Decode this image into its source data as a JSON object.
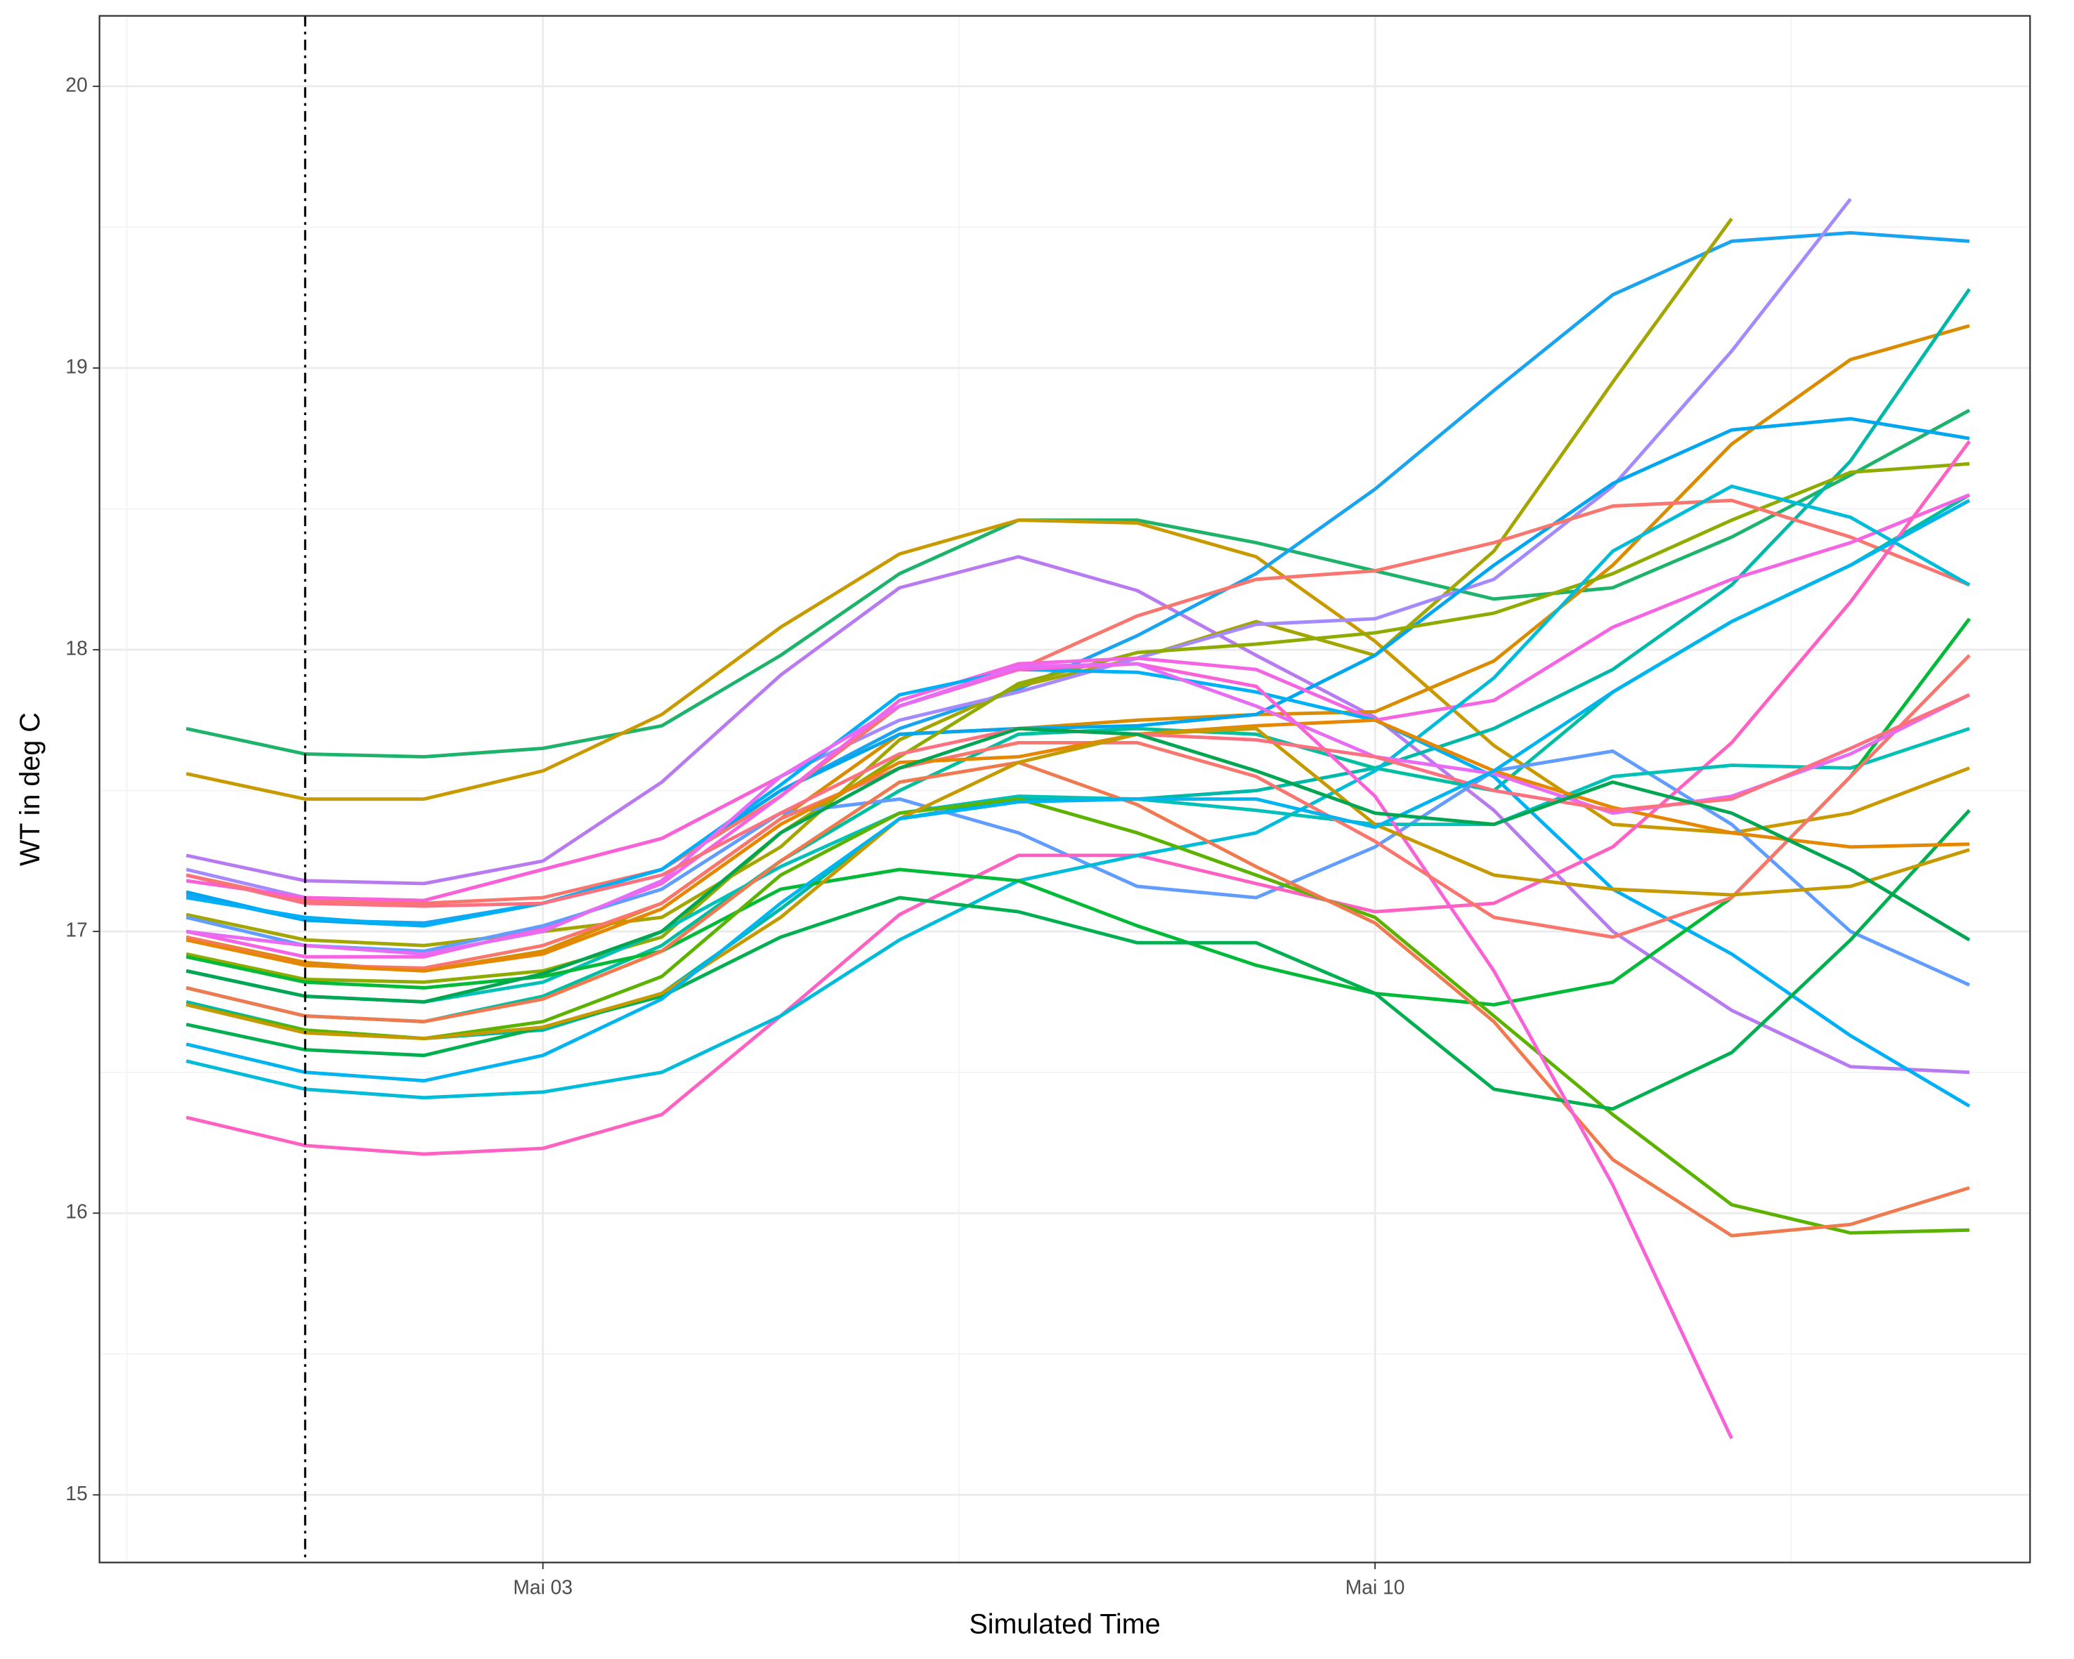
{
  "chart_data": {
    "type": "line",
    "x_label": "Simulated Time",
    "y_label": "WT in deg C",
    "x": [
      0,
      1,
      2,
      3,
      4,
      5,
      6,
      7,
      8,
      9,
      10,
      11,
      12,
      13,
      14,
      15
    ],
    "xlim": [
      -0.73,
      15.51
    ],
    "xticks": [
      {
        "value": 3,
        "label": "Mai 03"
      },
      {
        "value": 10,
        "label": "Mai 10"
      }
    ],
    "xminor": [
      -0.5,
      6.5,
      13.5
    ],
    "ylim": [
      14.76,
      20.25
    ],
    "yticks": [
      15,
      16,
      17,
      18,
      19,
      20
    ],
    "yminor": [
      15.5,
      16.5,
      17.5,
      18.5,
      19.5
    ],
    "vline": 1,
    "grid": true,
    "series": [
      {
        "color": "#1db36b",
        "values": [
          17.72,
          17.63,
          17.62,
          17.65,
          17.73,
          17.98,
          18.27,
          18.46,
          18.46,
          18.38,
          18.28,
          18.18,
          18.22,
          18.4,
          18.62,
          18.85
        ]
      },
      {
        "color": "#c99a00",
        "values": [
          17.56,
          17.47,
          17.47,
          17.57,
          17.77,
          18.08,
          18.34,
          18.46,
          18.45,
          18.33,
          18.03,
          17.66,
          17.38,
          17.35,
          17.42,
          17.58
        ]
      },
      {
        "color": "#b87af0",
        "values": [
          17.27,
          17.18,
          17.17,
          17.25,
          17.53,
          17.91,
          18.22,
          18.33,
          18.21,
          17.98,
          17.76,
          17.43,
          17.0,
          16.72,
          16.52,
          16.5
        ]
      },
      {
        "color": "#1aa4f0",
        "values": [
          17.13,
          17.04,
          17.03,
          17.1,
          17.22,
          17.5,
          17.72,
          17.86,
          18.05,
          18.27,
          18.57,
          18.92,
          19.26,
          19.45,
          19.48,
          19.45
        ]
      },
      {
        "color": "#a3a500",
        "values": [
          17.06,
          16.97,
          16.95,
          17.0,
          17.05,
          17.3,
          17.68,
          17.87,
          17.97,
          18.1,
          17.98,
          18.35,
          18.95,
          19.53,
          null,
          null
        ]
      },
      {
        "color": "#a48afc",
        "values": [
          17.22,
          17.12,
          17.11,
          17.22,
          17.33,
          17.55,
          17.75,
          17.85,
          17.97,
          18.09,
          18.11,
          18.25,
          18.58,
          19.06,
          19.6,
          null
        ]
      },
      {
        "color": "#d98c00",
        "values": [
          16.98,
          16.89,
          16.86,
          16.93,
          17.1,
          17.4,
          17.7,
          17.72,
          17.75,
          17.77,
          17.78,
          17.96,
          18.3,
          18.73,
          19.03,
          19.15
        ]
      },
      {
        "color": "#00b8a8",
        "values": [
          16.75,
          16.65,
          16.62,
          16.65,
          16.78,
          17.08,
          17.4,
          17.47,
          17.47,
          17.5,
          17.58,
          17.72,
          17.93,
          18.23,
          18.67,
          19.28
        ]
      },
      {
        "color": "#00a6ee",
        "values": [
          17.14,
          17.04,
          17.02,
          17.1,
          17.22,
          17.5,
          17.7,
          17.72,
          17.73,
          17.77,
          17.98,
          18.3,
          18.59,
          18.78,
          18.82,
          18.75
        ]
      },
      {
        "color": "#8fab00",
        "values": [
          16.92,
          16.83,
          16.82,
          16.86,
          16.98,
          17.35,
          17.62,
          17.88,
          17.99,
          18.02,
          18.06,
          18.13,
          18.27,
          18.46,
          18.63,
          18.66
        ]
      },
      {
        "color": "#f8766d",
        "values": [
          17.2,
          17.11,
          17.1,
          17.12,
          17.22,
          17.48,
          17.8,
          17.93,
          18.12,
          18.25,
          18.28,
          18.38,
          18.51,
          18.53,
          18.4,
          18.23
        ]
      },
      {
        "color": "#00bfa0",
        "values": [
          16.8,
          16.7,
          16.68,
          16.77,
          16.95,
          17.25,
          17.5,
          17.7,
          17.72,
          17.7,
          17.58,
          17.5,
          17.85,
          18.1,
          18.3,
          18.55
        ]
      },
      {
        "color": "#f564e3",
        "values": [
          17.0,
          16.91,
          16.91,
          17.01,
          17.17,
          17.48,
          17.82,
          17.95,
          17.97,
          17.93,
          17.75,
          17.82,
          18.08,
          18.25,
          18.38,
          18.55
        ]
      },
      {
        "color": "#00b0f6",
        "values": [
          17.12,
          17.05,
          17.02,
          17.1,
          17.22,
          17.52,
          17.84,
          17.93,
          17.92,
          17.85,
          17.75,
          17.55,
          17.15,
          16.92,
          16.63,
          16.38
        ]
      },
      {
        "color": "#619cff",
        "values": [
          17.05,
          16.95,
          16.93,
          17.02,
          17.15,
          17.42,
          17.47,
          17.35,
          17.16,
          17.12,
          17.3,
          17.57,
          17.64,
          17.38,
          17.0,
          16.81
        ]
      },
      {
        "color": "#ff61c3",
        "values": [
          16.34,
          16.24,
          16.21,
          16.23,
          16.35,
          16.7,
          17.06,
          17.27,
          17.27,
          17.17,
          17.07,
          17.1,
          17.3,
          17.67,
          18.17,
          18.74
        ]
      },
      {
        "color": "#00bcd8",
        "values": [
          16.54,
          16.44,
          16.41,
          16.43,
          16.5,
          16.7,
          16.97,
          17.18,
          17.27,
          17.35,
          17.57,
          17.9,
          18.35,
          18.58,
          18.47,
          18.23
        ]
      },
      {
        "color": "#00c0b8",
        "values": [
          16.86,
          16.77,
          16.75,
          16.82,
          17.0,
          17.23,
          17.42,
          17.48,
          17.47,
          17.43,
          17.38,
          17.38,
          17.55,
          17.59,
          17.58,
          17.72
        ]
      },
      {
        "color": "#00ba38",
        "values": [
          16.91,
          16.82,
          16.8,
          16.84,
          16.93,
          17.15,
          17.22,
          17.18,
          17.02,
          16.88,
          16.78,
          16.74,
          16.82,
          17.12,
          17.55,
          18.11
        ]
      },
      {
        "color": "#5bb300",
        "values": [
          16.74,
          16.65,
          16.62,
          16.68,
          16.84,
          17.2,
          17.42,
          17.47,
          17.35,
          17.2,
          17.05,
          16.7,
          16.35,
          16.03,
          15.93,
          15.94
        ]
      },
      {
        "color": "#f07a50",
        "values": [
          16.8,
          16.7,
          16.68,
          16.76,
          16.93,
          17.25,
          17.53,
          17.6,
          17.45,
          17.23,
          17.03,
          16.68,
          16.19,
          15.92,
          15.96,
          16.09
        ]
      },
      {
        "color": "#00b050",
        "values": [
          16.67,
          16.58,
          16.56,
          16.66,
          16.77,
          16.98,
          17.12,
          17.07,
          16.96,
          16.96,
          16.78,
          16.44,
          16.37,
          16.57,
          16.97,
          17.43
        ]
      },
      {
        "color": "#fb61d7",
        "values": [
          17.18,
          17.12,
          17.11,
          17.22,
          17.33,
          17.55,
          17.8,
          17.93,
          17.95,
          17.87,
          17.48,
          16.86,
          16.1,
          15.2,
          null,
          null
        ]
      },
      {
        "color": "#f8766d",
        "values": [
          16.98,
          16.88,
          16.87,
          16.95,
          17.1,
          17.4,
          17.58,
          17.67,
          17.67,
          17.55,
          17.32,
          17.05,
          16.98,
          17.12,
          17.55,
          17.98
        ]
      },
      {
        "color": "#e58700",
        "values": [
          16.97,
          16.88,
          16.86,
          16.92,
          17.08,
          17.38,
          17.6,
          17.62,
          17.7,
          17.73,
          17.75,
          17.57,
          17.44,
          17.35,
          17.3,
          17.31
        ]
      },
      {
        "color": "#c49a00",
        "values": [
          16.74,
          16.64,
          16.62,
          16.66,
          16.78,
          17.05,
          17.4,
          17.6,
          17.7,
          17.72,
          17.38,
          17.2,
          17.15,
          17.13,
          17.16,
          17.29
        ]
      },
      {
        "color": "#e76bf3",
        "values": [
          17.0,
          16.95,
          16.92,
          17.0,
          17.18,
          17.55,
          17.8,
          17.94,
          17.95,
          17.8,
          17.62,
          17.56,
          17.42,
          17.48,
          17.63,
          17.84
        ]
      },
      {
        "color": "#fc717f",
        "values": [
          17.2,
          17.1,
          17.09,
          17.1,
          17.2,
          17.42,
          17.63,
          17.72,
          17.7,
          17.68,
          17.62,
          17.5,
          17.43,
          17.47,
          17.65,
          17.84
        ]
      },
      {
        "color": "#00b4ef",
        "values": [
          16.6,
          16.5,
          16.47,
          16.56,
          16.76,
          17.1,
          17.4,
          17.46,
          17.47,
          17.47,
          17.37,
          17.57,
          17.85,
          18.1,
          18.3,
          18.53
        ]
      },
      {
        "color": "#00a651",
        "values": [
          16.86,
          16.77,
          16.75,
          16.85,
          17.0,
          17.35,
          17.58,
          17.72,
          17.7,
          17.57,
          17.42,
          17.38,
          17.53,
          17.42,
          17.22,
          16.97
        ]
      }
    ]
  }
}
